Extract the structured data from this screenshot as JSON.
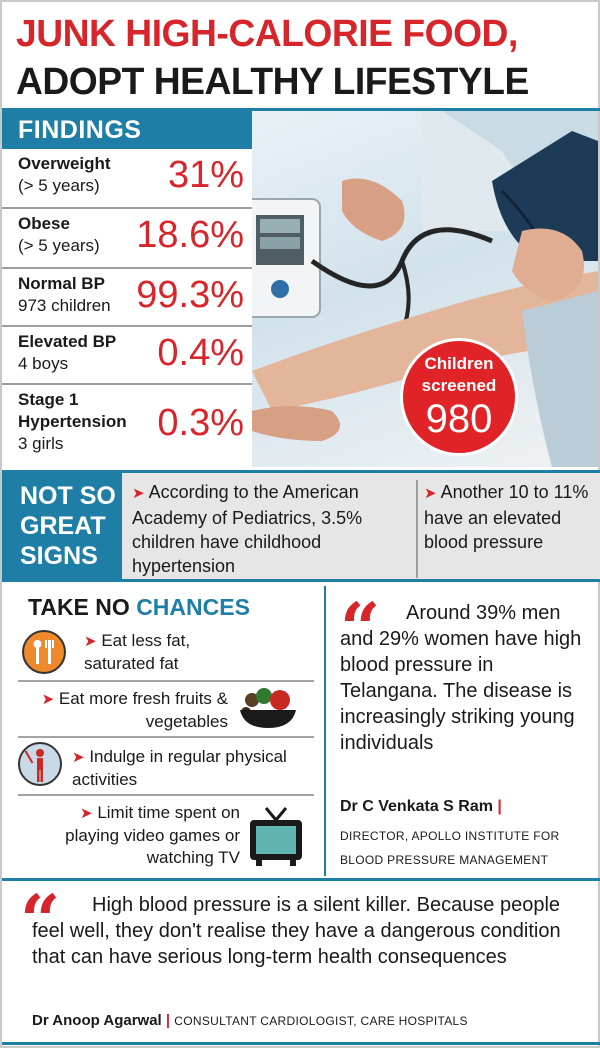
{
  "header": {
    "title_line1": "JUNK HIGH-CALORIE FOOD,",
    "title_line2": "ADOPT HEALTHY LIFESTYLE"
  },
  "findings": {
    "heading": "FINDINGS",
    "rows": [
      {
        "label_bold": "Overweight",
        "label_sub": "(> 5 years)",
        "value": "31%"
      },
      {
        "label_bold": "Obese",
        "label_sub": "(> 5 years)",
        "value": "18.6%"
      },
      {
        "label_bold": "Normal BP",
        "label_sub": "973 children",
        "value": "99.3%"
      },
      {
        "label_bold": "Elevated BP",
        "label_sub": "4 boys",
        "value": "0.4%"
      },
      {
        "label_bold": "Stage 1",
        "label_bold2": "Hypertension",
        "label_sub": "3 girls",
        "value": "0.3%"
      }
    ]
  },
  "screened": {
    "label_line1": "Children",
    "label_line2": "screened",
    "count": "980"
  },
  "not_so_great": {
    "heading_lines": [
      "NOT SO",
      "GREAT",
      "SIGNS"
    ],
    "point1": "According to the American Academy of Pediatrics, 3.5% children have childhood hypertension",
    "point2": "Another 10 to 11% have an elevated blood pressure"
  },
  "take_no_chances": {
    "heading_a": "TAKE NO",
    "heading_b": "CHANCES",
    "tips": [
      {
        "text": "Eat less fat, saturated fat",
        "icon": "fork-knife-icon"
      },
      {
        "text": "Eat more fresh fruits & vegetables",
        "icon": "fruit-bowl-icon"
      },
      {
        "text": "Indulge in regular physical activities",
        "icon": "exercise-icon"
      },
      {
        "text": "Limit time spent on playing video games or watching TV",
        "icon": "tv-icon"
      }
    ]
  },
  "quote1": {
    "text": "Around 39% men and 29% women have high blood pressure in Telangana. The disease is increasingly striking young individuals",
    "author": "Dr C Venkata S Ram",
    "role": "DIRECTOR, APOLLO INSTITUTE FOR BLOOD PRESSURE MANAGEMENT"
  },
  "quote2": {
    "text": "High blood pressure is a silent killer. Because people feel well, they don't realise they have a dangerous condition that can have serious long-term health consequences",
    "author": "Dr Anoop Agarwal",
    "role": "CONSULTANT CARDIOLOGIST, CARE HOSPITALS"
  },
  "colors": {
    "accent_red": "#d7262b",
    "accent_blue": "#1f7ea6"
  }
}
